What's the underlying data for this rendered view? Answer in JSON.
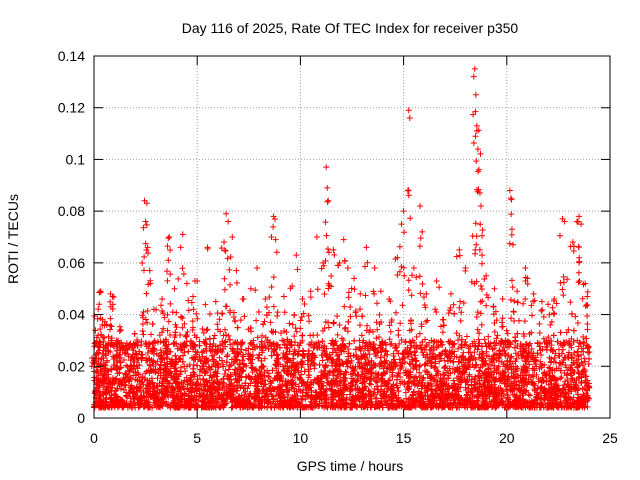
{
  "chart_data": {
    "type": "scatter",
    "title": "Day 116 of 2025, Rate Of TEC Index for receiver p350",
    "xlabel": "GPS time / hours",
    "ylabel": "ROTI / TECUs",
    "xlim": [
      0,
      25
    ],
    "ylim": [
      0,
      0.14
    ],
    "xticks": [
      0,
      5,
      10,
      15,
      20,
      25
    ],
    "yticks": [
      0,
      0.02,
      0.04,
      0.06,
      0.08,
      0.1,
      0.12,
      0.14
    ],
    "xtick_labels": [
      "0",
      "5",
      "10",
      "15",
      "20",
      "25"
    ],
    "ytick_labels": [
      "0",
      "0.02",
      "0.04",
      "0.06",
      "0.08",
      "0.1",
      "0.12",
      "0.14"
    ],
    "grid": true,
    "marker": "+",
    "marker_color": "#ff0000",
    "series": [
      {
        "name": "ROTI",
        "points": [
          [
            0.0,
            0.018
          ],
          [
            0.1,
            0.022
          ],
          [
            0.2,
            0.032
          ],
          [
            0.25,
            0.044
          ],
          [
            0.3,
            0.049
          ],
          [
            0.4,
            0.036
          ],
          [
            0.6,
            0.028
          ],
          [
            0.8,
            0.048
          ],
          [
            0.9,
            0.047
          ],
          [
            1.1,
            0.03
          ],
          [
            1.5,
            0.026
          ],
          [
            2.0,
            0.028
          ],
          [
            2.4,
            0.041
          ],
          [
            2.45,
            0.084
          ],
          [
            2.5,
            0.076
          ],
          [
            2.6,
            0.066
          ],
          [
            2.7,
            0.057
          ],
          [
            2.9,
            0.042
          ],
          [
            3.3,
            0.046
          ],
          [
            3.6,
            0.061
          ],
          [
            3.65,
            0.07
          ],
          [
            3.9,
            0.05
          ],
          [
            4.2,
            0.066
          ],
          [
            4.3,
            0.071
          ],
          [
            4.5,
            0.052
          ],
          [
            4.8,
            0.047
          ],
          [
            5.0,
            0.053
          ],
          [
            5.5,
            0.066
          ],
          [
            5.9,
            0.045
          ],
          [
            6.3,
            0.068
          ],
          [
            6.4,
            0.079
          ],
          [
            6.5,
            0.076
          ],
          [
            6.7,
            0.07
          ],
          [
            6.9,
            0.057
          ],
          [
            7.2,
            0.046
          ],
          [
            7.6,
            0.05
          ],
          [
            7.9,
            0.058
          ],
          [
            8.3,
            0.046
          ],
          [
            8.6,
            0.07
          ],
          [
            8.7,
            0.078
          ],
          [
            8.8,
            0.069
          ],
          [
            9.2,
            0.047
          ],
          [
            9.6,
            0.051
          ],
          [
            9.8,
            0.063
          ],
          [
            10.1,
            0.046
          ],
          [
            10.5,
            0.049
          ],
          [
            10.8,
            0.07
          ],
          [
            11.1,
            0.06
          ],
          [
            11.25,
            0.097
          ],
          [
            11.3,
            0.089
          ],
          [
            11.35,
            0.084
          ],
          [
            11.6,
            0.065
          ],
          [
            11.9,
            0.06
          ],
          [
            12.1,
            0.069
          ],
          [
            12.3,
            0.058
          ],
          [
            12.6,
            0.054
          ],
          [
            12.9,
            0.048
          ],
          [
            13.2,
            0.066
          ],
          [
            13.6,
            0.058
          ],
          [
            13.9,
            0.049
          ],
          [
            14.3,
            0.046
          ],
          [
            14.7,
            0.062
          ],
          [
            14.9,
            0.075
          ],
          [
            15.0,
            0.08
          ],
          [
            15.25,
            0.119
          ],
          [
            15.3,
            0.116
          ],
          [
            15.5,
            0.058
          ],
          [
            15.8,
            0.082
          ],
          [
            15.9,
            0.072
          ],
          [
            16.1,
            0.048
          ],
          [
            16.6,
            0.053
          ],
          [
            16.9,
            0.038
          ],
          [
            17.3,
            0.048
          ],
          [
            17.7,
            0.065
          ],
          [
            18.0,
            0.058
          ],
          [
            18.4,
            0.132
          ],
          [
            18.45,
            0.135
          ],
          [
            18.5,
            0.125
          ],
          [
            18.55,
            0.113
          ],
          [
            18.6,
            0.104
          ],
          [
            18.65,
            0.096
          ],
          [
            18.7,
            0.087
          ],
          [
            18.75,
            0.082
          ],
          [
            18.8,
            0.063
          ],
          [
            19.0,
            0.055
          ],
          [
            19.4,
            0.05
          ],
          [
            19.8,
            0.046
          ],
          [
            20.15,
            0.088
          ],
          [
            20.2,
            0.085
          ],
          [
            20.25,
            0.073
          ],
          [
            20.3,
            0.067
          ],
          [
            20.5,
            0.049
          ],
          [
            20.9,
            0.058
          ],
          [
            21.0,
            0.054
          ],
          [
            21.3,
            0.048
          ],
          [
            21.7,
            0.045
          ],
          [
            22.0,
            0.044
          ],
          [
            22.3,
            0.046
          ],
          [
            22.7,
            0.077
          ],
          [
            22.8,
            0.076
          ],
          [
            23.2,
            0.068
          ],
          [
            23.4,
            0.076
          ],
          [
            23.5,
            0.078
          ],
          [
            23.6,
            0.075
          ],
          [
            23.8,
            0.052
          ],
          [
            23.9,
            0.047
          ]
        ],
        "dense_band": {
          "x_range": [
            0,
            24
          ],
          "y_typical_range": [
            0.004,
            0.03
          ],
          "description_values": {
            "median": 0.014
          }
        }
      }
    ]
  }
}
